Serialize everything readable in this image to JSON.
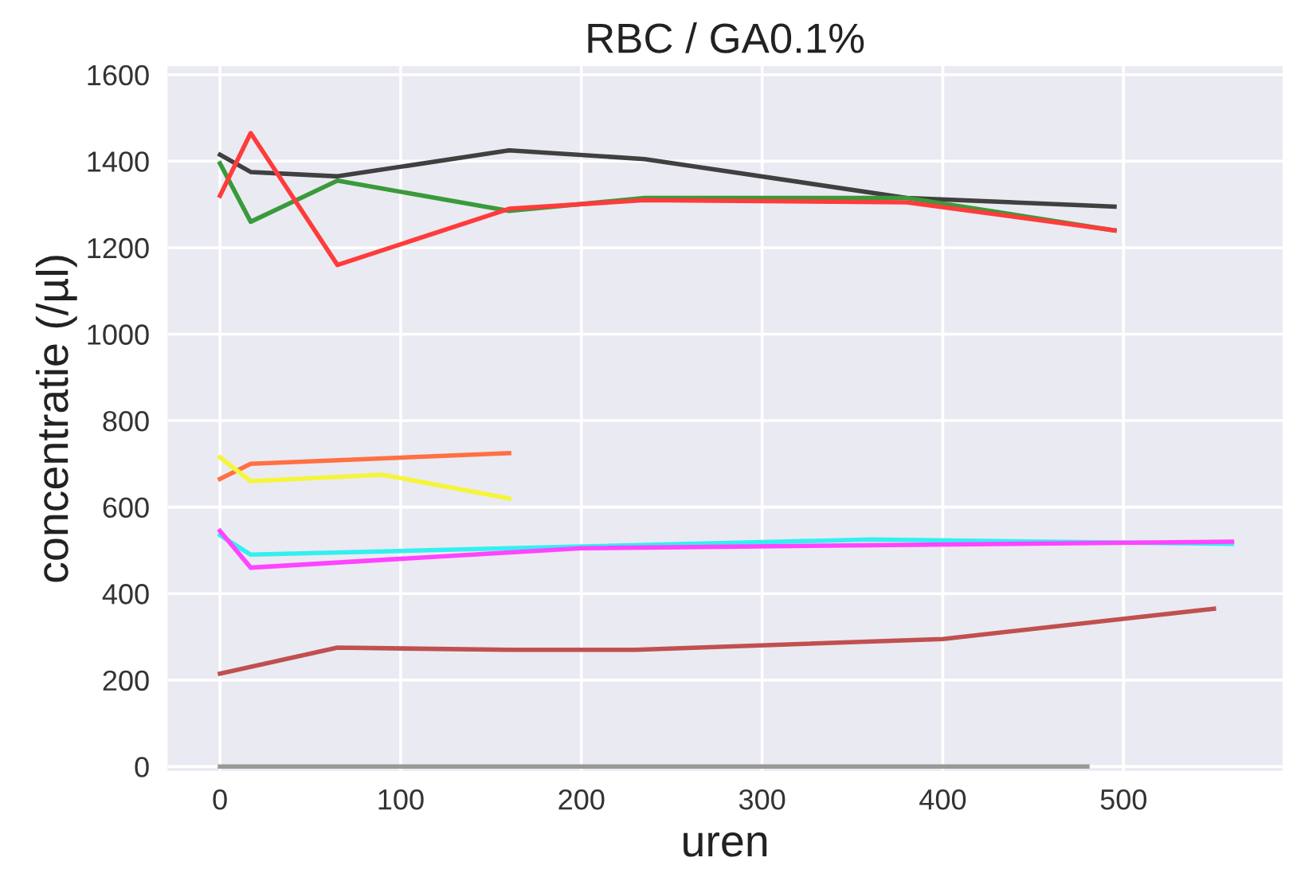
{
  "chart_data": {
    "type": "line",
    "title": "RBC / GA0.1%",
    "xlabel": "uren",
    "ylabel": "concentratie (/µl)",
    "xlim": [
      -29,
      588
    ],
    "ylim": [
      -10,
      1620
    ],
    "xticks": [
      0,
      100,
      200,
      300,
      400,
      500
    ],
    "yticks": [
      0,
      200,
      400,
      600,
      800,
      1000,
      1200,
      1400,
      1600
    ],
    "grid": true,
    "marker": "none",
    "line_style": "solid",
    "series": [
      {
        "color": "#404040",
        "x": [
          0,
          17,
          65,
          160,
          235,
          380,
          495
        ],
        "values": [
          1415,
          1375,
          1365,
          1425,
          1405,
          1315,
          1295
        ]
      },
      {
        "color": "#3a9a3a",
        "x": [
          0,
          17,
          65,
          160,
          235,
          380,
          495
        ],
        "values": [
          1395,
          1260,
          1355,
          1285,
          1315,
          1315,
          1240
        ]
      },
      {
        "color": "#ff3b3b",
        "x": [
          0,
          17,
          65,
          160,
          235,
          380,
          495
        ],
        "values": [
          1320,
          1465,
          1160,
          1290,
          1310,
          1305,
          1240
        ]
      },
      {
        "color": "#ff7043",
        "x": [
          0,
          17,
          160
        ],
        "values": [
          665,
          700,
          725
        ]
      },
      {
        "color": "#f5f53a",
        "x": [
          0,
          17,
          90,
          160
        ],
        "values": [
          715,
          660,
          675,
          620
        ]
      },
      {
        "color": "#33f0f0",
        "x": [
          0,
          17,
          160,
          360,
          560
        ],
        "values": [
          535,
          490,
          505,
          525,
          515
        ]
      },
      {
        "color": "#ff44ff",
        "x": [
          0,
          17,
          200,
          560
        ],
        "values": [
          545,
          460,
          505,
          520
        ]
      },
      {
        "color": "#c05050",
        "x": [
          0,
          65,
          160,
          230,
          400,
          550
        ],
        "values": [
          215,
          275,
          270,
          270,
          295,
          365
        ]
      },
      {
        "color": "#999999",
        "x": [
          0,
          480
        ],
        "values": [
          0,
          0
        ]
      }
    ]
  }
}
